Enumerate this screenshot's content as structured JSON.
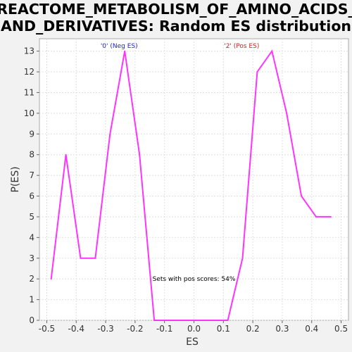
{
  "chart_data": {
    "type": "line",
    "title_line1": "REACTOME_METABOLISM_OF_AMINO_ACIDS_",
    "title_line2": "AND_DERIVATIVES: Random ES distribution",
    "xlabel": "ES",
    "ylabel": "P(ES)",
    "xlim": [
      -0.525,
      0.525
    ],
    "ylim": [
      0,
      13.6
    ],
    "x_ticks": [
      -0.5,
      -0.4,
      -0.3,
      -0.2,
      -0.1,
      0.0,
      0.1,
      0.2,
      0.3,
      0.4,
      0.5
    ],
    "x_tick_labels": [
      "-0.5",
      "-0.4",
      "-0.3",
      "-0.2",
      "-0.1",
      "0.0",
      "0.1",
      "0.2",
      "0.3",
      "0.4",
      "0.5"
    ],
    "y_ticks": [
      0,
      1,
      2,
      3,
      4,
      5,
      6,
      7,
      8,
      9,
      10,
      11,
      12,
      13
    ],
    "y_tick_labels": [
      "0",
      "1",
      "2",
      "3",
      "4",
      "5",
      "6",
      "7",
      "8",
      "9",
      "10",
      "11",
      "12",
      "13"
    ],
    "grid": true,
    "line_color": "#ff33ff",
    "series": [
      {
        "x": [
          -0.485,
          -0.435,
          -0.385,
          -0.335,
          -0.285,
          -0.235,
          -0.185,
          -0.135,
          -0.085,
          -0.035,
          0.015,
          0.065,
          0.115,
          0.165,
          0.215,
          0.265,
          0.315,
          0.365,
          0.415,
          0.465
        ],
        "y": [
          2,
          8,
          3,
          3,
          9,
          13,
          8,
          0,
          0,
          0,
          0,
          0,
          0,
          3,
          12,
          13,
          10,
          6,
          5,
          5
        ]
      }
    ],
    "annotations": {
      "neg_label": {
        "text": "'0' (Neg ES)",
        "color": "#2222cc",
        "x": -0.235
      },
      "pos_label": {
        "text": "'2' (Pos ES)",
        "color": "#cc2222",
        "x": 0.265
      },
      "summary": {
        "text": "Sets with pos scores: 54%",
        "color": "#000000",
        "x": 0.0,
        "y": 2
      }
    }
  }
}
